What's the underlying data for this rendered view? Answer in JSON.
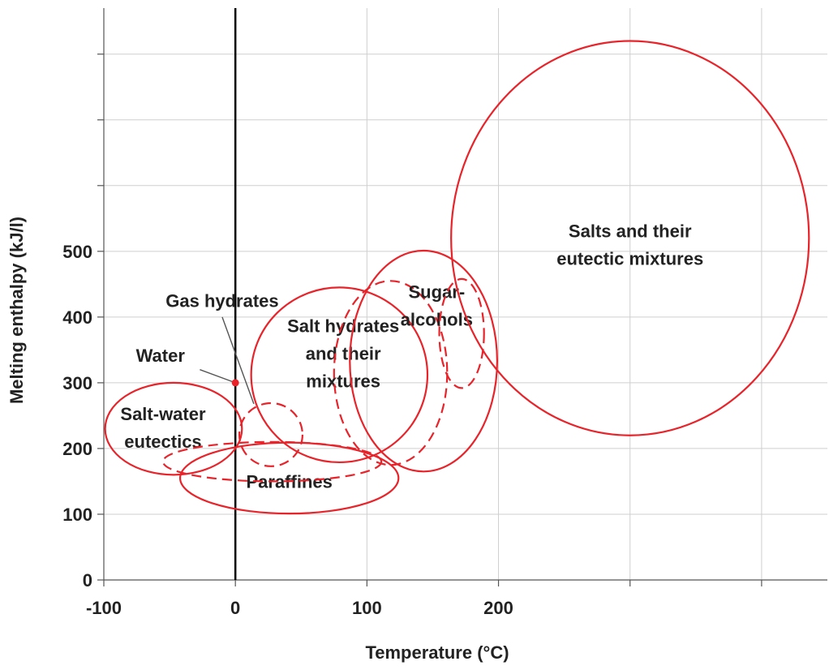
{
  "chart_data": {
    "type": "scatter",
    "title": "",
    "xlabel": "Temperature (°C)",
    "ylabel": "Melting enthalpy (kJ/l)",
    "xlim": [
      -100,
      450
    ],
    "ylim": [
      0,
      870
    ],
    "x_ticks": [
      {
        "value": -100,
        "label": "-100"
      },
      {
        "value": 0,
        "label": "0"
      },
      {
        "value": 100,
        "label": "100"
      },
      {
        "value": 200,
        "label": "200"
      }
    ],
    "x_grid": [
      -100,
      0,
      100,
      200,
      300,
      400
    ],
    "y_ticks": [
      {
        "value": 0,
        "label": "0"
      },
      {
        "value": 100,
        "label": "100"
      },
      {
        "value": 200,
        "label": "200"
      },
      {
        "value": 300,
        "label": "300"
      },
      {
        "value": 400,
        "label": "400"
      },
      {
        "value": 500,
        "label": "500"
      }
    ],
    "y_grid": [
      0,
      100,
      200,
      300,
      400,
      500,
      600,
      700,
      800
    ],
    "grid": true,
    "colors": {
      "region": "#e8232a",
      "grid": "#cfcfcf",
      "axis": "#000000"
    },
    "regions": [
      {
        "label": [
          "Salt-water",
          "eutectics"
        ],
        "cx": -47,
        "cy": 230,
        "rx": 52,
        "ry": 70,
        "style": "solid",
        "label_at": [
          -55,
          232
        ]
      },
      {
        "label": [
          "Paraffines"
        ],
        "cx": 41,
        "cy": 155,
        "rx": 83,
        "ry": 54,
        "style": "solid",
        "label_at": [
          41,
          150
        ]
      },
      {
        "label": [],
        "cx": 28,
        "cy": 180,
        "rx": 83,
        "ry": 30,
        "style": "dashed",
        "label_at": null
      },
      {
        "label": [],
        "cx": 27,
        "cy": 221,
        "rx": 24,
        "ry": 48,
        "style": "dashed",
        "label_at": null
      },
      {
        "label": [
          "Salt hydrates",
          "and their",
          "mixtures"
        ],
        "cx": 79,
        "cy": 312,
        "rx": 67,
        "ry": 133,
        "style": "solid",
        "label_at": [
          82,
          345
        ]
      },
      {
        "label": [],
        "cx": 118,
        "cy": 315,
        "rx": 43,
        "ry": 140,
        "style": "dashed",
        "label_at": null
      },
      {
        "label": [
          "Sugar-",
          "alcohols"
        ],
        "cx": 143,
        "cy": 333,
        "rx": 56,
        "ry": 168,
        "style": "solid",
        "label_at": [
          153,
          418
        ]
      },
      {
        "label": [],
        "cx": 172,
        "cy": 375,
        "rx": 17,
        "ry": 83,
        "style": "dashed",
        "label_at": null
      },
      {
        "label": [
          "Salts and their",
          "eutectic mixtures"
        ],
        "cx": 300,
        "cy": 520,
        "rx": 136,
        "ry": 300,
        "style": "solid",
        "label_at": [
          300,
          510
        ]
      }
    ],
    "points": [
      {
        "label": "Water",
        "x": 0,
        "y": 300,
        "label_at": [
          -57,
          342
        ]
      }
    ],
    "annotations": [
      {
        "label": "Gas hydrates",
        "label_at": [
          -10,
          415
        ],
        "arrow_from": [
          -10,
          400
        ],
        "arrow_to": [
          14,
          268
        ]
      }
    ]
  }
}
